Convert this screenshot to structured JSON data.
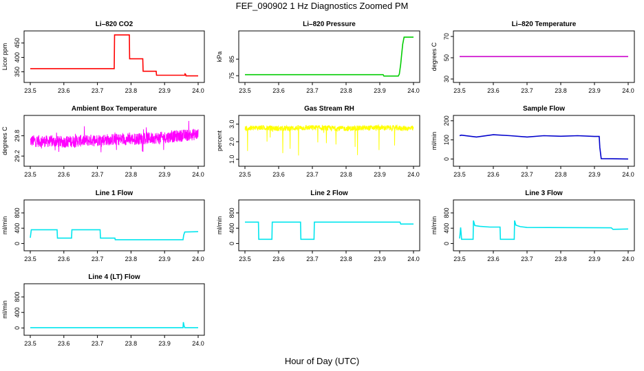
{
  "figure": {
    "title": "FEF_090902  1 Hz Diagnostics Zoomed PM",
    "xlabel": "Hour of Day (UTC)"
  },
  "chart_data": [
    {
      "type": "line",
      "title": "Li–820 CO2",
      "ylabel": "Licor ppm",
      "color": "#ff0000",
      "xlim": [
        23.5,
        24.0
      ],
      "ylim": [
        325,
        480
      ],
      "x_ticks": [
        "23.5",
        "23.6",
        "23.7",
        "23.8",
        "23.9",
        "24.0"
      ],
      "y_ticks": [
        "350",
        "400",
        "450"
      ],
      "series": [
        {
          "x": [
            23.5,
            23.75,
            23.751,
            23.795,
            23.796,
            23.835,
            23.836,
            23.875,
            23.876,
            23.96,
            23.961,
            23.963,
            23.964,
            24.0
          ],
          "y": [
            361,
            361,
            478,
            478,
            395,
            395,
            352,
            352,
            338,
            338,
            343,
            341,
            336,
            336
          ]
        }
      ]
    },
    {
      "type": "line",
      "title": "Li–820 Pressure",
      "ylabel": "kPa",
      "color": "#00cc00",
      "xlim": [
        23.5,
        24.0
      ],
      "ylim": [
        73,
        100
      ],
      "x_ticks": [
        "23.5",
        "23.6",
        "23.7",
        "23.8",
        "23.9",
        "24.0"
      ],
      "y_ticks": [
        "75",
        "85"
      ],
      "series": [
        {
          "x": [
            23.5,
            23.91,
            23.912,
            23.955,
            23.958,
            23.962,
            23.965,
            23.968,
            23.972,
            24.0
          ],
          "y": [
            75.6,
            75.6,
            74.8,
            74.8,
            76,
            82,
            88,
            94,
            98.3,
            98.3
          ]
        }
      ]
    },
    {
      "type": "line",
      "title": "Li–820 Temperature",
      "ylabel": "degrees C",
      "color": "#cc00cc",
      "xlim": [
        23.5,
        24.0
      ],
      "ylim": [
        30,
        72
      ],
      "x_ticks": [
        "23.5",
        "23.6",
        "23.7",
        "23.8",
        "23.9",
        "24.0"
      ],
      "y_ticks": [
        "30",
        "50",
        "70"
      ],
      "series": [
        {
          "x": [
            23.5,
            24.0
          ],
          "y": [
            51.1,
            51.1
          ]
        }
      ]
    },
    {
      "type": "line",
      "title": "Ambient Box Temperature",
      "ylabel": "degrees C",
      "color": "#ff00ff",
      "xlim": [
        23.5,
        24.0
      ],
      "ylim": [
        29.0,
        30.3
      ],
      "x_ticks": [
        "23.5",
        "23.6",
        "23.7",
        "23.8",
        "23.9",
        "24.0"
      ],
      "y_ticks": [
        "29.2",
        "29.8"
      ],
      "series": [
        {
          "x": [
            23.5,
            23.6,
            23.7,
            23.8,
            23.9,
            23.95,
            24.0
          ],
          "y": [
            29.65,
            29.62,
            29.68,
            29.7,
            29.75,
            29.8,
            29.85
          ]
        }
      ]
    },
    {
      "type": "line",
      "title": "Gas Stream RH",
      "ylabel": "percent",
      "color": "#ffff00",
      "xlim": [
        23.5,
        24.0
      ],
      "ylim": [
        0.8,
        3.3
      ],
      "x_ticks": [
        "23.5",
        "23.6",
        "23.7",
        "23.8",
        "23.9",
        "24.0"
      ],
      "y_ticks": [
        "1.0",
        "2.0",
        "3.0"
      ],
      "series": [
        {
          "x": [
            23.5,
            23.55,
            23.6,
            23.7,
            23.8,
            23.9,
            24.0
          ],
          "y": [
            2.75,
            2.8,
            2.75,
            2.8,
            2.75,
            2.8,
            2.75
          ]
        }
      ]
    },
    {
      "type": "line",
      "title": "Sample Flow",
      "ylabel": "ml/min",
      "color": "#0000cc",
      "xlim": [
        23.5,
        24.0
      ],
      "ylim": [
        -20,
        210
      ],
      "x_ticks": [
        "23.5",
        "23.6",
        "23.7",
        "23.8",
        "23.9",
        "24.0"
      ],
      "y_ticks": [
        "0",
        "100",
        "200"
      ],
      "series": [
        {
          "x": [
            23.5,
            23.505,
            23.55,
            23.6,
            23.65,
            23.7,
            23.75,
            23.8,
            23.85,
            23.9,
            23.914,
            23.916,
            23.92,
            24.0
          ],
          "y": [
            122,
            125,
            115,
            127,
            122,
            115,
            122,
            119,
            122,
            118,
            118,
            60,
            2,
            0
          ]
        }
      ]
    },
    {
      "type": "line",
      "title": "Line 1 Flow",
      "ylabel": "ml/min",
      "color": "#00e5ee",
      "xlim": [
        23.5,
        24.0
      ],
      "ylim": [
        -100,
        1050
      ],
      "x_ticks": [
        "23.5",
        "23.6",
        "23.7",
        "23.8",
        "23.9",
        "24.0"
      ],
      "y_ticks": [
        "0",
        "400",
        "800"
      ],
      "series": [
        {
          "x": [
            23.5,
            23.503,
            23.58,
            23.581,
            23.623,
            23.624,
            23.708,
            23.709,
            23.752,
            23.753,
            23.955,
            23.957,
            23.96,
            24.0
          ],
          "y": [
            150,
            360,
            360,
            140,
            140,
            360,
            360,
            140,
            140,
            100,
            100,
            220,
            300,
            310
          ]
        }
      ]
    },
    {
      "type": "line",
      "title": "Line 2 Flow",
      "ylabel": "ml/min",
      "color": "#00e5ee",
      "xlim": [
        23.5,
        24.0
      ],
      "ylim": [
        -100,
        1050
      ],
      "x_ticks": [
        "23.5",
        "23.6",
        "23.7",
        "23.8",
        "23.9",
        "24.0"
      ],
      "y_ticks": [
        "0",
        "400",
        "800"
      ],
      "series": [
        {
          "x": [
            23.5,
            23.54,
            23.541,
            23.58,
            23.581,
            23.665,
            23.666,
            23.705,
            23.706,
            23.96,
            23.962,
            24.0
          ],
          "y": [
            560,
            560,
            110,
            110,
            560,
            560,
            110,
            110,
            560,
            560,
            510,
            510
          ]
        }
      ]
    },
    {
      "type": "line",
      "title": "Line 3 Flow",
      "ylabel": "ml/min",
      "color": "#00e5ee",
      "xlim": [
        23.5,
        24.0
      ],
      "ylim": [
        -100,
        1050
      ],
      "x_ticks": [
        "23.5",
        "23.6",
        "23.7",
        "23.8",
        "23.9",
        "24.0"
      ],
      "y_ticks": [
        "0",
        "400",
        "800"
      ],
      "series": [
        {
          "x": [
            23.5,
            23.503,
            23.506,
            23.54,
            23.541,
            23.545,
            23.56,
            23.59,
            23.6,
            23.62,
            23.621,
            23.662,
            23.663,
            23.667,
            23.68,
            23.7,
            23.95,
            23.955,
            24.0
          ],
          "y": [
            130,
            420,
            110,
            110,
            600,
            470,
            450,
            430,
            430,
            430,
            110,
            110,
            600,
            480,
            440,
            420,
            410,
            370,
            380
          ]
        }
      ]
    },
    {
      "type": "line",
      "title": "Line 4 (LT) Flow",
      "ylabel": "ml/min",
      "color": "#00e5ee",
      "xlim": [
        23.5,
        24.0
      ],
      "ylim": [
        -100,
        1050
      ],
      "x_ticks": [
        "23.5",
        "23.6",
        "23.7",
        "23.8",
        "23.9",
        "24.0"
      ],
      "y_ticks": [
        "0",
        "400",
        "800"
      ],
      "series": [
        {
          "x": [
            23.5,
            23.955,
            23.956,
            23.958,
            23.96,
            24.0
          ],
          "y": [
            8,
            8,
            150,
            60,
            8,
            8
          ]
        }
      ]
    }
  ]
}
